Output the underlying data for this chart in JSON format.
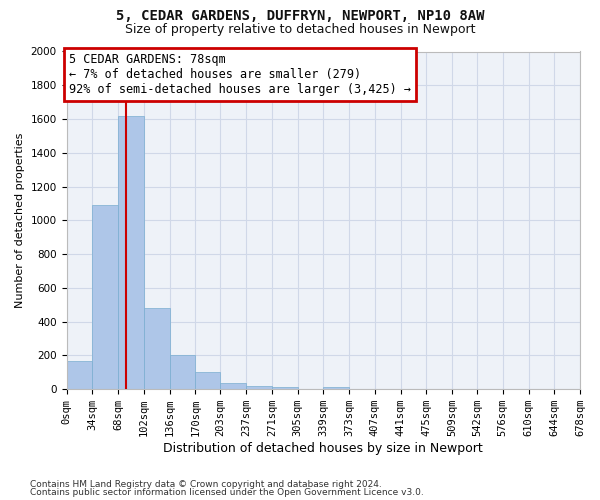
{
  "title1": "5, CEDAR GARDENS, DUFFRYN, NEWPORT, NP10 8AW",
  "title2": "Size of property relative to detached houses in Newport",
  "xlabel": "Distribution of detached houses by size in Newport",
  "ylabel": "Number of detached properties",
  "bin_edges": [
    0,
    34,
    68,
    102,
    136,
    170,
    203,
    237,
    271,
    305,
    339,
    373,
    407,
    441,
    475,
    509,
    542,
    576,
    610,
    644,
    678
  ],
  "bar_heights": [
    170,
    1090,
    1620,
    480,
    200,
    100,
    35,
    20,
    15,
    0,
    15,
    0,
    0,
    0,
    0,
    0,
    0,
    0,
    0,
    0
  ],
  "bar_color": "#aec6e8",
  "bar_edgecolor": "#7aaed0",
  "grid_color": "#d0d8e8",
  "bg_color": "#eef2f8",
  "vline_x": 78,
  "vline_color": "#cc0000",
  "annotation_line1": "5 CEDAR GARDENS: 78sqm",
  "annotation_line2": "← 7% of detached houses are smaller (279)",
  "annotation_line3": "92% of semi-detached houses are larger (3,425) →",
  "annotation_box_edgecolor": "#cc0000",
  "annotation_bg": "#ffffff",
  "ylim": [
    0,
    2000
  ],
  "yticks": [
    0,
    200,
    400,
    600,
    800,
    1000,
    1200,
    1400,
    1600,
    1800,
    2000
  ],
  "xtick_labels": [
    "0sqm",
    "34sqm",
    "68sqm",
    "102sqm",
    "136sqm",
    "170sqm",
    "203sqm",
    "237sqm",
    "271sqm",
    "305sqm",
    "339sqm",
    "373sqm",
    "407sqm",
    "441sqm",
    "475sqm",
    "509sqm",
    "542sqm",
    "576sqm",
    "610sqm",
    "644sqm",
    "678sqm"
  ],
  "footer1": "Contains HM Land Registry data © Crown copyright and database right 2024.",
  "footer2": "Contains public sector information licensed under the Open Government Licence v3.0.",
  "title1_fontsize": 10,
  "title2_fontsize": 9,
  "xlabel_fontsize": 9,
  "ylabel_fontsize": 8,
  "tick_fontsize": 7.5,
  "footer_fontsize": 6.5,
  "annotation_fontsize": 8.5
}
